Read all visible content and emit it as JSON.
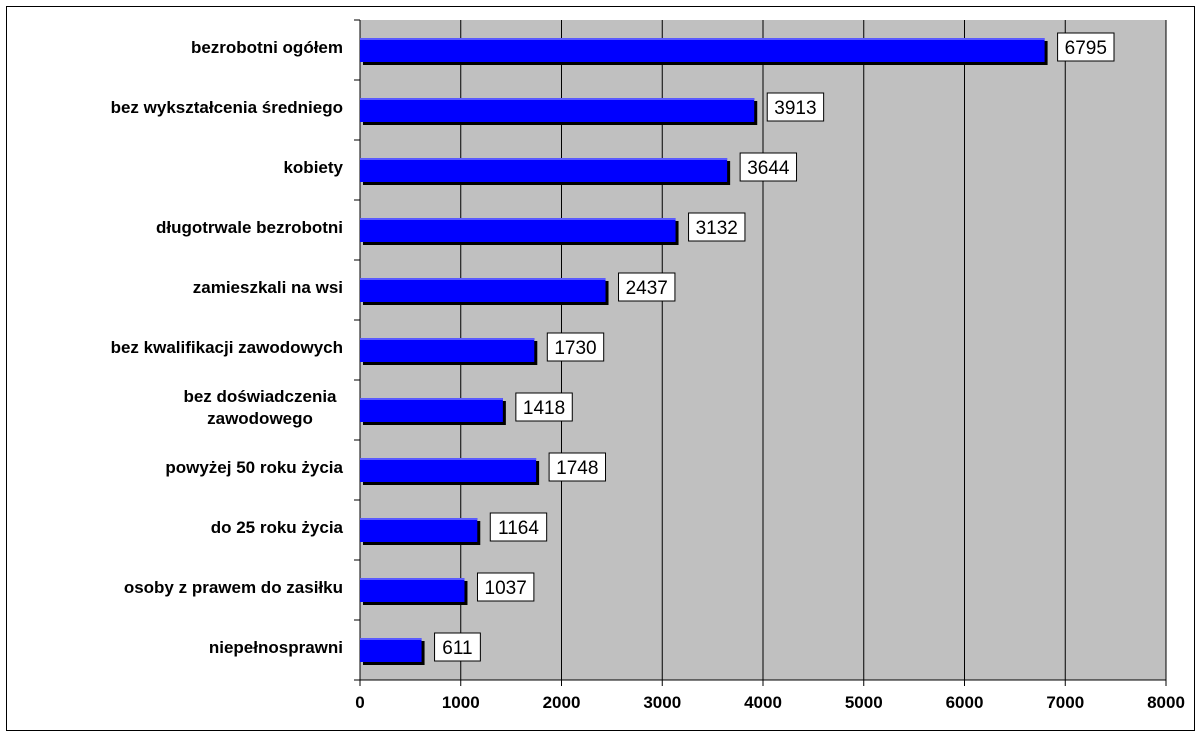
{
  "chart_data": {
    "type": "bar",
    "orientation": "horizontal",
    "title": "",
    "xlabel": "",
    "ylabel": "",
    "categories": [
      "bezrobotni ogółem",
      "bez wykształcenia średniego",
      "kobiety",
      "długotrwale bezrobotni",
      "zamieszkali na wsi",
      "bez kwalifikacji zawodowych",
      "bez doświadczenia zawodowego",
      "powyżej 50 roku życia",
      "do 25 roku życia",
      "osoby z prawem do zasiłku",
      "niepełnosprawni"
    ],
    "category_lines": [
      [
        "bezrobotni ogółem"
      ],
      [
        "bez wykształcenia średniego"
      ],
      [
        "kobiety"
      ],
      [
        "długotrwale bezrobotni"
      ],
      [
        "zamieszkali na wsi"
      ],
      [
        "bez kwalifikacji zawodowych"
      ],
      [
        "bez doświadczenia",
        "zawodowego"
      ],
      [
        "powyżej 50 roku życia"
      ],
      [
        "do 25 roku życia"
      ],
      [
        "osoby z prawem do zasiłku"
      ],
      [
        "niepełnosprawni"
      ]
    ],
    "values": [
      6795,
      3913,
      3644,
      3132,
      2437,
      1730,
      1418,
      1748,
      1164,
      1037,
      611
    ],
    "data_labels": [
      "6795",
      "3913",
      "3644",
      "3132",
      "2437",
      "1730",
      "1418",
      "1748",
      "1164",
      "1037",
      "611"
    ],
    "xlim": [
      0,
      8000
    ],
    "xticks": [
      0,
      1000,
      2000,
      3000,
      4000,
      5000,
      6000,
      7000,
      8000
    ],
    "xtick_labels": [
      "0",
      "1000",
      "2000",
      "3000",
      "4000",
      "5000",
      "6000",
      "7000",
      "8000"
    ],
    "grid": true,
    "legend": "none",
    "colors": {
      "bar": "#0000ff",
      "bar_highlight": "#5a5aff",
      "bar_shadow": "#000000",
      "plot_background": "#c0c0c0",
      "gridline": "#000000",
      "label_box_fill": "#ffffff",
      "label_box_stroke": "#000000"
    }
  }
}
